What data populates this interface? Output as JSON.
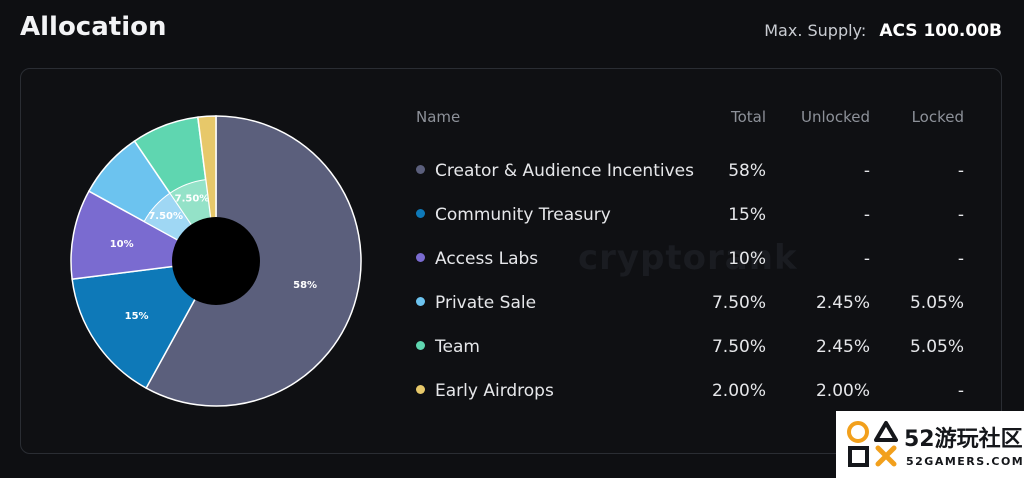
{
  "header": {
    "title": "Allocation",
    "supply_label": "Max. Supply:",
    "supply_value": "ACS 100.00B"
  },
  "table": {
    "headers": {
      "name": "Name",
      "total": "Total",
      "unlocked": "Unlocked",
      "locked": "Locked"
    },
    "rows": [
      {
        "name": "Creator & Audience Incentives",
        "total": "58%",
        "unlocked": "-",
        "locked": "-",
        "color": "#5b5f7c"
      },
      {
        "name": "Community Treasury",
        "total": "15%",
        "unlocked": "-",
        "locked": "-",
        "color": "#0e79b8"
      },
      {
        "name": "Access Labs",
        "total": "10%",
        "unlocked": "-",
        "locked": "-",
        "color": "#7a6bd0"
      },
      {
        "name": "Private Sale",
        "total": "7.50%",
        "unlocked": "2.45%",
        "locked": "5.05%",
        "color": "#6cc3ef"
      },
      {
        "name": "Team",
        "total": "7.50%",
        "unlocked": "2.45%",
        "locked": "5.05%",
        "color": "#5fd6b0"
      },
      {
        "name": "Early Airdrops",
        "total": "2.00%",
        "unlocked": "2.00%",
        "locked": "-",
        "color": "#e7c86a"
      }
    ]
  },
  "chart_data": {
    "type": "pie",
    "donut": true,
    "slices": [
      {
        "label": "Creator & Audience Incentives",
        "value": 58,
        "display": "58%",
        "color": "#5b5f7c"
      },
      {
        "label": "Community Treasury",
        "value": 15,
        "display": "15%",
        "color": "#0e79b8"
      },
      {
        "label": "Access Labs",
        "value": 10,
        "display": "10%",
        "color": "#7a6bd0"
      },
      {
        "label": "Private Sale",
        "value": 7.5,
        "display": "7.50%",
        "color": "#6cc3ef"
      },
      {
        "label": "Team",
        "value": 7.5,
        "display": "7.50%",
        "color": "#5fd6b0"
      },
      {
        "label": "Early Airdrops",
        "value": 2,
        "display": "",
        "color": "#e7c86a"
      }
    ],
    "inner_slice_colors": [
      "#9fd7f4",
      "#94e2c8"
    ],
    "hole_color": "#000000"
  },
  "watermark": "cryptorank",
  "badge": {
    "main": "52游玩社区",
    "sub": "52GAMERS.COM",
    "colors": {
      "orange": "#f2a01c",
      "dark": "#15171b"
    }
  }
}
